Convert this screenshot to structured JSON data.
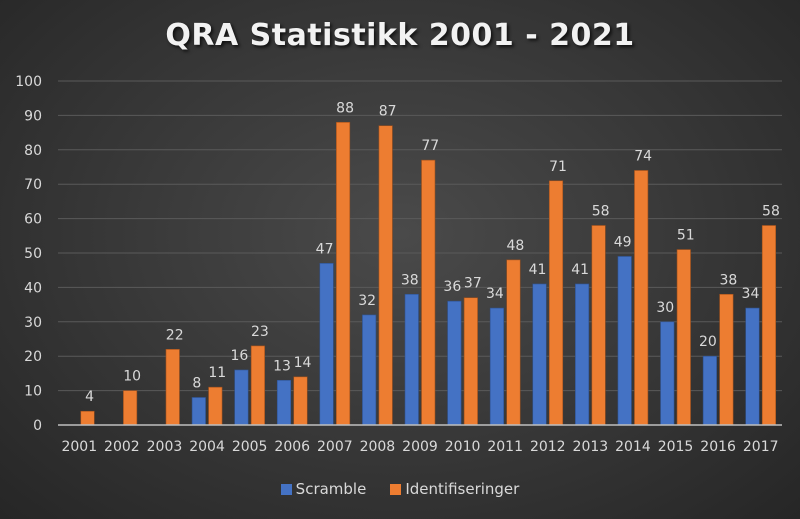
{
  "chart_data": {
    "type": "bar",
    "title": "QRA Statistikk 2001 - 2021",
    "xlabel": "",
    "ylabel": "",
    "ylim": [
      0,
      100
    ],
    "yticks": [
      0,
      10,
      20,
      30,
      40,
      50,
      60,
      70,
      80,
      90,
      100
    ],
    "grid": true,
    "legend_position": "bottom",
    "categories": [
      "2001",
      "2002",
      "2003",
      "2004",
      "2005",
      "2006",
      "2007",
      "2008",
      "2009",
      "2010",
      "2011",
      "2012",
      "2013",
      "2014",
      "2015",
      "2016",
      "2017"
    ],
    "series": [
      {
        "name": "Scramble",
        "color": "#4472c4",
        "values": [
          null,
          null,
          null,
          8,
          16,
          13,
          47,
          32,
          38,
          36,
          34,
          41,
          41,
          49,
          30,
          20,
          34
        ]
      },
      {
        "name": "Identifiseringer",
        "color": "#ed7d31",
        "values": [
          4,
          10,
          22,
          11,
          23,
          14,
          88,
          87,
          77,
          37,
          48,
          71,
          58,
          74,
          51,
          38,
          58
        ]
      }
    ]
  }
}
